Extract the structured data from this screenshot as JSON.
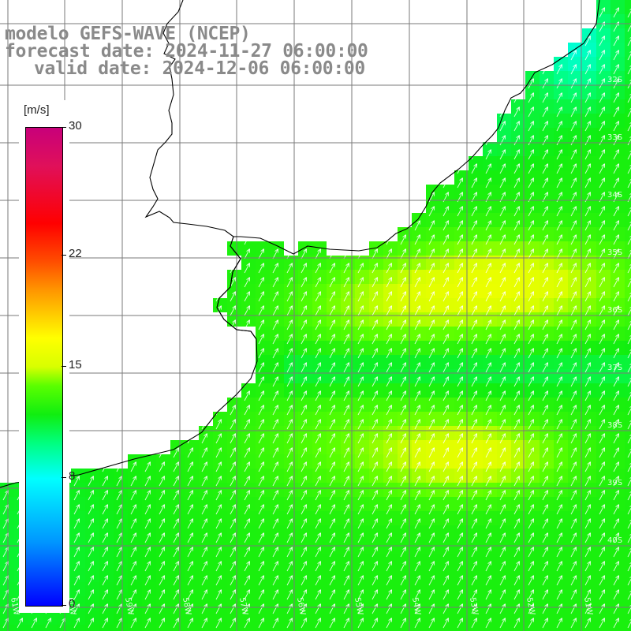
{
  "title": {
    "line1": "modelo GEFS-WAVE (NCEP)",
    "line2": "forecast date: 2024-11-27 06:00:00",
    "line3": "valid date: 2024-12-06 06:00:00"
  },
  "legend": {
    "unit": "[m/s]",
    "ticks": [
      {
        "label": "30",
        "value": 30
      },
      {
        "label": "22",
        "value": 22
      },
      {
        "label": "15",
        "value": 15
      },
      {
        "label": "8",
        "value": 8
      },
      {
        "label": "0",
        "value": 0
      }
    ],
    "colors": [
      "#0000ff",
      "#0096ff",
      "#00ffff",
      "#00ff80",
      "#10ee10",
      "#5aff00",
      "#d8ff00",
      "#ffff00",
      "#ff9600",
      "#ff0000",
      "#c8007a"
    ]
  },
  "map": {
    "lon_labels": [
      "61W",
      "60W",
      "59W",
      "58W",
      "57W",
      "56W",
      "55W",
      "54W",
      "53W",
      "52W",
      "51W"
    ],
    "lat_labels": [
      "32S",
      "33S",
      "34S",
      "35S",
      "36S",
      "37S",
      "38S",
      "39S",
      "40S"
    ],
    "wind_direction": "south-west to north-east",
    "land_color": "#ffffff",
    "coastline_color": "#000000",
    "grid_color": "#7a7a7a"
  }
}
